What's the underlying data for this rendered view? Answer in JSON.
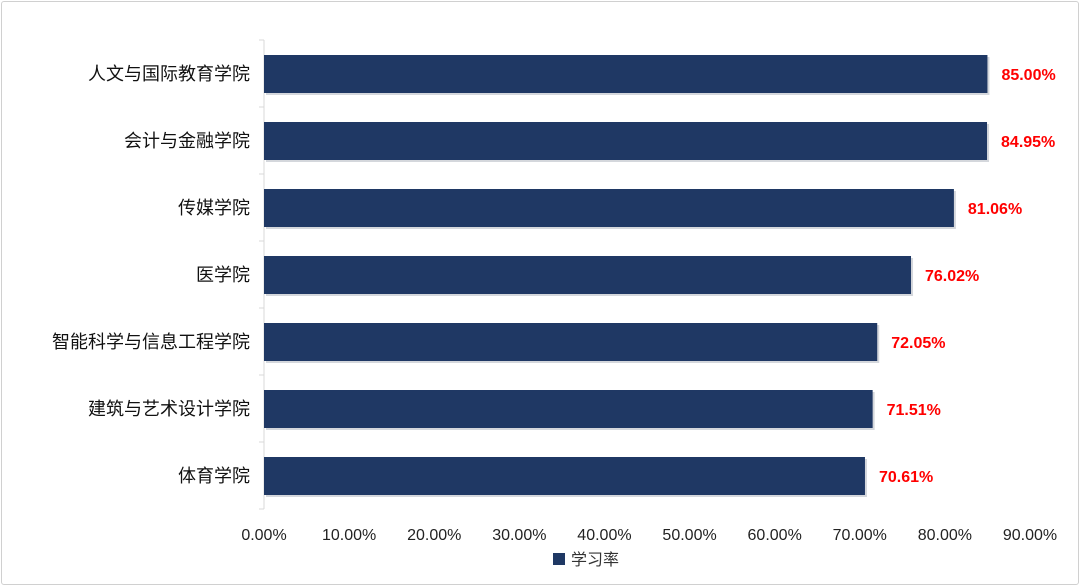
{
  "chart_data": {
    "type": "bar",
    "orientation": "horizontal",
    "categories": [
      "人文与国际教育学院",
      "会计与金融学院",
      "传媒学院",
      "医学院",
      "智能科学与信息工程学院",
      "建筑与艺术设计学院",
      "体育学院"
    ],
    "series": [
      {
        "name": "学习率",
        "values": [
          85.0,
          84.95,
          81.06,
          76.02,
          72.05,
          71.51,
          70.61
        ],
        "color": "#1f3864"
      }
    ],
    "data_labels": [
      "85.00%",
      "84.95%",
      "81.06%",
      "76.02%",
      "72.05%",
      "71.51%",
      "70.61%"
    ],
    "data_label_color": "#ff0000",
    "x_ticks": [
      "0.00%",
      "10.00%",
      "20.00%",
      "30.00%",
      "40.00%",
      "50.00%",
      "60.00%",
      "70.00%",
      "80.00%",
      "90.00%"
    ],
    "xlim": [
      0,
      90
    ],
    "grid": false,
    "legend_position": "bottom"
  }
}
